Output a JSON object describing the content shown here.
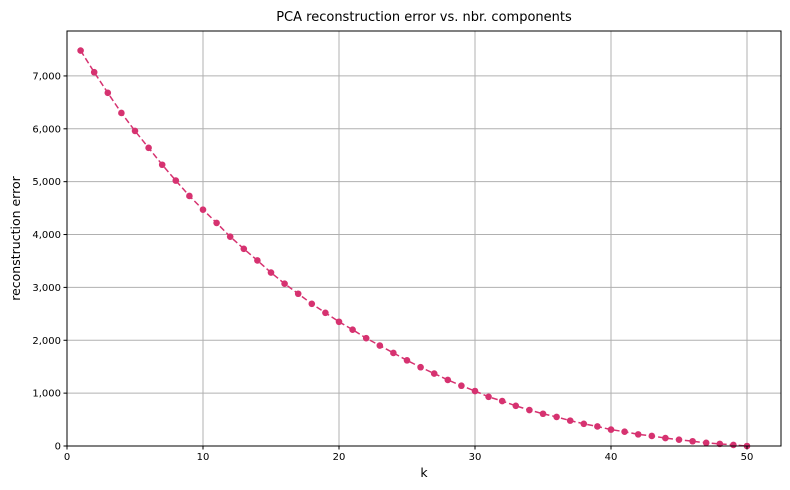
{
  "chart_data": {
    "type": "line",
    "title": "PCA reconstruction error vs. nbr. components",
    "xlabel": "k",
    "ylabel": "reconstruction error",
    "xlim": [
      0,
      52.5
    ],
    "ylim": [
      0,
      7850
    ],
    "xticks": [
      0,
      10,
      20,
      30,
      40,
      50
    ],
    "yticks": [
      0,
      1000,
      2000,
      3000,
      4000,
      5000,
      6000,
      7000
    ],
    "xtick_labels": [
      "0",
      "10",
      "20",
      "30",
      "40",
      "50"
    ],
    "ytick_labels": [
      "0",
      "1,000",
      "2,000",
      "3,000",
      "4,000",
      "5,000",
      "6,000",
      "7,000"
    ],
    "grid": true,
    "line_style": "dashed",
    "marker": "circle",
    "color": "#d63270",
    "series": [
      {
        "x": [
          1,
          2,
          3,
          4,
          5,
          6,
          7,
          8,
          9,
          10,
          11,
          12,
          13,
          14,
          15,
          16,
          17,
          18,
          19,
          20,
          21,
          22,
          23,
          24,
          25,
          26,
          27,
          28,
          29,
          30,
          31,
          32,
          33,
          34,
          35,
          36,
          37,
          38,
          39,
          40,
          41,
          42,
          43,
          44,
          45,
          46,
          47,
          48,
          49,
          50
        ],
        "y": [
          7480,
          7070,
          6680,
          6300,
          5960,
          5640,
          5320,
          5020,
          4730,
          4470,
          4220,
          3960,
          3730,
          3510,
          3280,
          3070,
          2880,
          2690,
          2520,
          2350,
          2200,
          2040,
          1900,
          1760,
          1620,
          1490,
          1370,
          1250,
          1140,
          1040,
          930,
          850,
          760,
          680,
          610,
          550,
          480,
          420,
          370,
          310,
          270,
          220,
          190,
          150,
          120,
          90,
          60,
          40,
          20,
          0
        ]
      }
    ]
  }
}
